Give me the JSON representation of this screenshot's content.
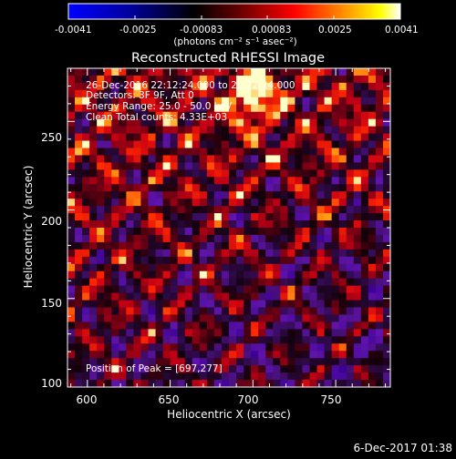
{
  "colorbar": {
    "tick_labels": [
      "-0.0041",
      "-0.0025",
      "-0.00083",
      "0.00083",
      "0.0025",
      "0.0041"
    ],
    "unit_label": "(photons cm⁻² s⁻¹ asec⁻²)"
  },
  "title": "Reconstructed RHESSI Image",
  "annotations": {
    "time_range": "26-Dec-2016 22:12:24.000 to 22:22:24.000",
    "detectors": "Detectors: 3F 9F, Att 0",
    "energy": "Energy Range: 25.0 - 50.0 keV",
    "clean": "Clean    Total counts: 4.33E+03",
    "peak": "Position of Peak = [697,277]"
  },
  "axes": {
    "xlabel": "Heliocentric X (arcsec)",
    "ylabel": "Heliocentric Y (arcsec)",
    "x_range": [
      588,
      783
    ],
    "y_range": [
      100,
      280
    ],
    "x_ticks": [
      "600",
      "650",
      "700",
      "750"
    ],
    "y_ticks": [
      "100",
      "150",
      "200",
      "250"
    ]
  },
  "timestamp": "6-Dec-2017 01:38",
  "colors": {
    "colormap": [
      "#0000ff",
      "#000000",
      "#ff0000",
      "#ffff00",
      "#ffffff"
    ]
  }
}
